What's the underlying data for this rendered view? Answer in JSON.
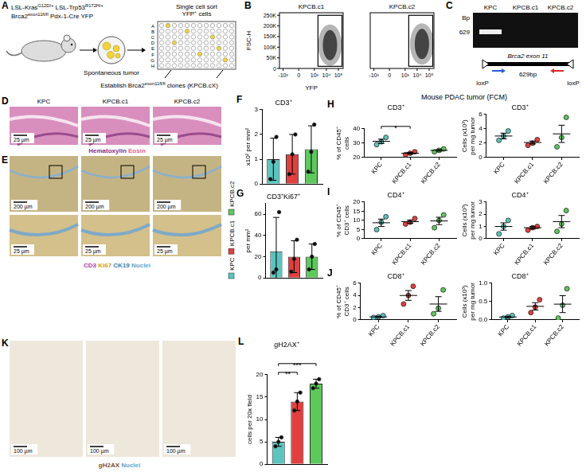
{
  "panels": {
    "A": {
      "letter": "A",
      "genotype_lines": [
        [
          {
            "base": "LSL-Kras",
            "sup": "G12D/+"
          },
          {
            "base": "LSL-Trp53",
            "sup": "R172H/+"
          }
        ],
        [
          {
            "base": "Brca2",
            "sup": "exon11fl/fl"
          },
          {
            "base": "Pdx-1-Cre YFP"
          }
        ]
      ],
      "tumor_label": "Spontaneous tumor",
      "sort_label_lines": [
        "Single cell sort",
        "YFP⁺ cells"
      ],
      "plate_rows": [
        "A",
        "B",
        "C",
        "D",
        "E",
        "F",
        "G",
        "H"
      ],
      "establish": [
        {
          "base": "Establish Brca2",
          "sup": "exon11fl/fl"
        },
        {
          "base": "clones (KPCB.cX)"
        }
      ]
    },
    "B": {
      "letter": "B",
      "y_label": "FSC-H",
      "x_label": "YFP",
      "xlim": [
        -2000,
        250000
      ],
      "ylim": [
        0,
        262144
      ],
      "xticks": [
        {
          "value": -1000,
          "label": "-10³"
        },
        0,
        {
          "value": 1000,
          "label": "10³"
        },
        {
          "value": 10000,
          "label": "10⁴"
        },
        {
          "value": 100000,
          "label": "10⁵"
        }
      ],
      "yticks": [
        0,
        {
          "value": 50000,
          "label": "50K"
        },
        {
          "value": 100000,
          "label": "100K"
        },
        {
          "value": 150000,
          "label": "150K"
        },
        {
          "value": 200000,
          "label": "200K"
        },
        {
          "value": 250000,
          "label": "250K"
        }
      ],
      "plots": [
        {
          "title": "KPCB.c1",
          "gate": {
            "x": [
              2000,
              200000
            ],
            "y": [
              10000,
              250000
            ]
          },
          "events_center": {
            "x": 20000,
            "y": 110000
          }
        },
        {
          "title": "KPCB.c2",
          "gate": {
            "x": [
              2000,
              200000
            ],
            "y": [
              10000,
              250000
            ]
          },
          "events_center": {
            "x": 25000,
            "y": 115000
          }
        }
      ]
    },
    "C": {
      "letter": "C",
      "lanes": [
        "KPC",
        "KPCB.c1",
        "KPCB.c2"
      ],
      "size_label": "Bp",
      "ladder": [
        629
      ],
      "bands": [
        {
          "lane": "KPC",
          "bp": 629
        }
      ],
      "gene_label": "Brca2 exon 11",
      "amplicon_label": "629bp",
      "lox_labels": [
        "loxP",
        "loxP"
      ]
    },
    "D": {
      "letter": "D",
      "titles": [
        "KPC",
        "KPCB.c1",
        "KPCB.c2"
      ],
      "scale_bars": [
        "25 µm",
        "25 µm",
        "25 µm"
      ],
      "caption": [
        {
          "text": "Hematoxylin",
          "color": "#8b2f8b"
        },
        {
          "text": "Eosin",
          "color": "#e0609c"
        }
      ]
    },
    "E": {
      "letter": "E",
      "scale_bars_top": [
        "200 µm",
        "200 µm",
        "200 µm"
      ],
      "scale_bars_bottom": [
        "25 µm",
        "25 µm",
        "25 µm"
      ],
      "caption": [
        {
          "text": "CD3",
          "color": "#b23ab2"
        },
        {
          "text": "Ki67",
          "color": "#d89a14"
        },
        {
          "text": "CK19",
          "color": "#2f7fb5"
        },
        {
          "text": "Nuclei",
          "color": "#5aa7d0"
        }
      ]
    },
    "H": {
      "header": "Mouse PDAC tumor (FCM)"
    },
    "K": {
      "letter": "K",
      "scale_bars": [
        "100 µm",
        "100 µm",
        "100 µm"
      ],
      "caption": [
        {
          "text": "gH2AX",
          "color": "#8b4a1c"
        },
        {
          "text": "Nuclei",
          "color": "#5aa7d0"
        }
      ]
    },
    "legend": [
      {
        "name": "KPC",
        "color": "#5bc4bf"
      },
      {
        "name": "KPCB.c1",
        "color": "#e0403f"
      },
      {
        "name": "KPCB.c2",
        "color": "#5dc95d"
      }
    ]
  },
  "chart_data": [
    {
      "panel": "F",
      "type": "bar",
      "title": "CD3⁺",
      "y_label": "x10² per mm²",
      "categories": [
        "KPC",
        "KPCB.c1",
        "KPCB.c2"
      ],
      "values": [
        1.0,
        1.2,
        1.4
      ],
      "errors": [
        0.85,
        0.8,
        0.95
      ],
      "points": [
        [
          0.2,
          0.9,
          1.9
        ],
        [
          0.4,
          1.2,
          2.0
        ],
        [
          0.5,
          1.3,
          2.4
        ]
      ],
      "colors": [
        "#5bc4bf",
        "#e0403f",
        "#5dc95d"
      ],
      "ylim": [
        0,
        3
      ],
      "yticks": [
        0,
        1,
        2,
        3
      ],
      "grid": false,
      "tick_labels": "y"
    },
    {
      "panel": "G",
      "type": "bar",
      "title": "CD3⁺Ki67⁺",
      "y_label": "per mm²",
      "categories": [
        "KPC",
        "KPCB.c1",
        "KPCB.c2"
      ],
      "values": [
        25,
        20,
        20
      ],
      "errors": [
        32,
        15,
        12
      ],
      "points": [
        [
          5,
          8,
          62
        ],
        [
          6,
          18,
          36
        ],
        [
          8,
          20,
          32
        ]
      ],
      "colors": [
        "#5bc4bf",
        "#e0403f",
        "#5dc95d"
      ],
      "ylim": [
        0,
        70
      ],
      "yticks": [
        0,
        20,
        40,
        60
      ],
      "grid": false,
      "tick_labels": "y"
    },
    {
      "panel": "H",
      "type": "dot",
      "title": "CD3⁺",
      "y_label": "% of CD45⁺ cells",
      "categories": [
        "KPC",
        "KPCB.c1",
        "KPCB.c2"
      ],
      "means": [
        31.3,
        23,
        25
      ],
      "errors": [
        1.5,
        0.6,
        0.6
      ],
      "points": [
        [
          29,
          31,
          34
        ],
        [
          22,
          23,
          24
        ],
        [
          24,
          25,
          26
        ]
      ],
      "colors": [
        "#5bc4bf",
        "#e0403f",
        "#5dc95d"
      ],
      "ylim": [
        20,
        40
      ],
      "yticks": [
        20,
        30,
        40
      ],
      "grid": false,
      "significance": [
        {
          "from": "KPC",
          "to": "KPCB.c1",
          "label": "*"
        }
      ]
    },
    {
      "type": "dot",
      "title": "CD3⁺",
      "y_label": "Cells (x10³) per mg tumor",
      "categories": [
        "KPC",
        "KPCB.c1",
        "KPCB.c2"
      ],
      "means": [
        3.0,
        2.1,
        3.3
      ],
      "errors": [
        0.4,
        0.2,
        1.2
      ],
      "points": [
        [
          2.4,
          3.0,
          3.7
        ],
        [
          1.7,
          2.0,
          2.5
        ],
        [
          1.5,
          2.8,
          5.6
        ]
      ],
      "colors": [
        "#5bc4bf",
        "#e0403f",
        "#5dc95d"
      ],
      "ylim": [
        0,
        6
      ],
      "yticks": [
        0,
        2,
        4,
        6
      ],
      "grid": false
    },
    {
      "panel": "I",
      "type": "dot",
      "title": "CD4⁺",
      "y_label": "% of CD45⁺ CD3⁺ cells",
      "categories": [
        "KPC",
        "KPCB.c1",
        "KPCB.c2"
      ],
      "means": [
        8.7,
        9.3,
        9.7
      ],
      "errors": [
        2.0,
        0.9,
        2.0
      ],
      "points": [
        [
          5,
          9,
          12
        ],
        [
          8,
          9,
          11
        ],
        [
          6,
          10,
          13
        ]
      ],
      "colors": [
        "#5bc4bf",
        "#e0403f",
        "#5dc95d"
      ],
      "ylim": [
        0,
        20
      ],
      "yticks": [
        0,
        5,
        10,
        15,
        20
      ],
      "grid": false
    },
    {
      "type": "dot",
      "title": "CD4⁺",
      "y_label": "Cells (x10³) per mg tumor",
      "categories": [
        "KPC",
        "KPCB.c1",
        "KPCB.c2"
      ],
      "means": [
        1.0,
        0.9,
        1.4
      ],
      "errors": [
        0.3,
        0.1,
        0.5
      ],
      "points": [
        [
          0.4,
          1.0,
          1.5
        ],
        [
          0.7,
          0.9,
          1.0
        ],
        [
          0.6,
          1.2,
          2.3
        ]
      ],
      "colors": [
        "#5bc4bf",
        "#e0403f",
        "#5dc95d"
      ],
      "ylim": [
        0,
        3
      ],
      "yticks": [
        0,
        1,
        2,
        3
      ],
      "grid": false
    },
    {
      "panel": "J",
      "type": "dot",
      "title": "CD8⁺",
      "y_label": "% of CD45⁺ CD3⁺ cells",
      "categories": [
        "KPC",
        "KPCB.c1",
        "KPCB.c2"
      ],
      "means": [
        0.5,
        4.0,
        2.6
      ],
      "errors": [
        0.1,
        0.8,
        1.2
      ],
      "points": [
        [
          0.4,
          0.5,
          0.7
        ],
        [
          2.6,
          4.0,
          5.5
        ],
        [
          1.0,
          1.9,
          4.9
        ]
      ],
      "colors": [
        "#5bc4bf",
        "#e0403f",
        "#5dc95d"
      ],
      "ylim": [
        0,
        6
      ],
      "yticks": [
        0,
        2,
        4,
        6
      ],
      "grid": false
    },
    {
      "type": "dot",
      "title": "CD8⁺",
      "y_label": "Cells (x10³) per mg tumor",
      "categories": [
        "KPC",
        "KPCB.c1",
        "KPCB.c2"
      ],
      "means": [
        0.08,
        0.37,
        0.43
      ],
      "errors": [
        0.02,
        0.1,
        0.23
      ],
      "points": [
        [
          0.05,
          0.08,
          0.12
        ],
        [
          0.2,
          0.35,
          0.55
        ],
        [
          0.05,
          0.4,
          0.85
        ]
      ],
      "colors": [
        "#5bc4bf",
        "#e0403f",
        "#5dc95d"
      ],
      "ylim": [
        0,
        1
      ],
      "yticks": [
        {
          "value": 0,
          "label": "0.0"
        },
        0.5,
        {
          "value": 1,
          "label": "1.0"
        }
      ],
      "grid": false
    },
    {
      "panel": "L",
      "type": "bar",
      "title": "gH2AX⁺",
      "y_label": "cells per 20x field",
      "categories": [
        "KPC",
        "KPCB.c1",
        "KPCB.c2"
      ],
      "values": [
        5,
        14,
        18
      ],
      "errors": [
        1,
        2,
        1
      ],
      "points": [
        [
          4,
          5,
          6
        ],
        [
          12,
          14,
          16
        ],
        [
          17,
          18,
          19
        ]
      ],
      "colors": [
        "#5bc4bf",
        "#e0403f",
        "#5dc95d"
      ],
      "ylim": [
        0,
        20
      ],
      "yticks": [
        0,
        5,
        10,
        15,
        20
      ],
      "grid": false,
      "tick_labels": "y",
      "significance": [
        {
          "from": "KPC",
          "to": "KPCB.c1",
          "label": "**"
        },
        {
          "from": "KPC",
          "to": "KPCB.c2",
          "label": "***"
        }
      ]
    }
  ]
}
